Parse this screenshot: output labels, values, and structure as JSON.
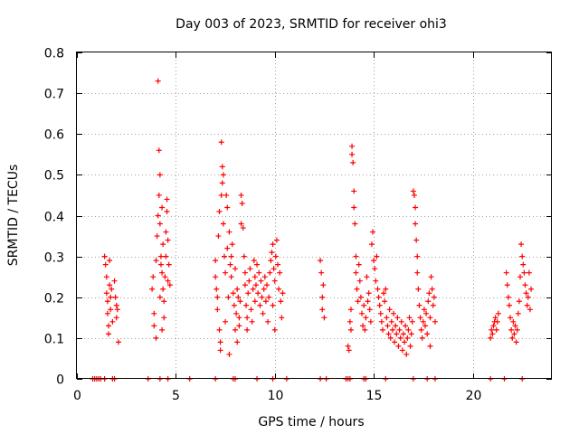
{
  "chart_data": {
    "type": "scatter",
    "title": "Day 003 of 2023, SRMTID for receiver ohi3",
    "xlabel": "GPS time / hours",
    "ylabel": "SRMTID / TECUs",
    "xlim": [
      0,
      24
    ],
    "ylim": [
      0,
      0.8
    ],
    "xticks": [
      0,
      5,
      10,
      15,
      20
    ],
    "xtick_labels": [
      "0",
      "5",
      "10",
      "15",
      "20"
    ],
    "yticks": [
      0,
      0.1,
      0.2,
      0.3,
      0.4,
      0.5,
      0.6,
      0.7,
      0.8
    ],
    "ytick_labels": [
      "0",
      "0.1",
      "0.2",
      "0.3",
      "0.4",
      "0.5",
      "0.6",
      "0.7",
      "0.8"
    ],
    "grid": true,
    "marker": "+",
    "series": [
      {
        "name": "SRMTID",
        "color": "#ff0000",
        "points": [
          [
            0.8,
            0
          ],
          [
            0.9,
            0
          ],
          [
            1.0,
            0
          ],
          [
            1.1,
            0
          ],
          [
            1.2,
            0
          ],
          [
            1.4,
            0
          ],
          [
            1.8,
            0
          ],
          [
            1.9,
            0
          ],
          [
            3.6,
            0
          ],
          [
            4.2,
            0
          ],
          [
            4.6,
            0
          ],
          [
            5.7,
            0
          ],
          [
            7.0,
            0
          ],
          [
            7.9,
            0
          ],
          [
            8.0,
            0
          ],
          [
            9.1,
            0
          ],
          [
            9.9,
            0
          ],
          [
            10.6,
            0
          ],
          [
            12.3,
            0
          ],
          [
            12.6,
            0
          ],
          [
            13.6,
            0
          ],
          [
            13.7,
            0
          ],
          [
            13.8,
            0
          ],
          [
            14.5,
            0
          ],
          [
            14.6,
            0
          ],
          [
            15.6,
            0
          ],
          [
            17.0,
            0
          ],
          [
            17.7,
            0
          ],
          [
            18.1,
            0
          ],
          [
            20.9,
            0
          ],
          [
            21.6,
            0
          ],
          [
            22.5,
            0
          ],
          [
            1.4,
            0.3
          ],
          [
            1.45,
            0.28
          ],
          [
            1.5,
            0.25
          ],
          [
            1.5,
            0.21
          ],
          [
            1.55,
            0.19
          ],
          [
            1.55,
            0.16
          ],
          [
            1.6,
            0.13
          ],
          [
            1.6,
            0.11
          ],
          [
            1.65,
            0.29
          ],
          [
            1.65,
            0.23
          ],
          [
            1.7,
            0.2
          ],
          [
            1.7,
            0.17
          ],
          [
            1.75,
            0.22
          ],
          [
            1.8,
            0.14
          ],
          [
            1.9,
            0.24
          ],
          [
            1.95,
            0.2
          ],
          [
            2.0,
            0.18
          ],
          [
            2.0,
            0.15
          ],
          [
            2.05,
            0.17
          ],
          [
            2.1,
            0.09
          ],
          [
            3.8,
            0.22
          ],
          [
            3.85,
            0.25
          ],
          [
            3.9,
            0.16
          ],
          [
            3.9,
            0.13
          ],
          [
            4.0,
            0.1
          ],
          [
            4.0,
            0.29
          ],
          [
            4.05,
            0.35
          ],
          [
            4.1,
            0.4
          ],
          [
            4.1,
            0.73
          ],
          [
            4.15,
            0.56
          ],
          [
            4.15,
            0.45
          ],
          [
            4.2,
            0.5
          ],
          [
            4.2,
            0.38
          ],
          [
            4.25,
            0.3
          ],
          [
            4.25,
            0.28
          ],
          [
            4.3,
            0.42
          ],
          [
            4.3,
            0.26
          ],
          [
            4.35,
            0.22
          ],
          [
            4.35,
            0.33
          ],
          [
            4.4,
            0.19
          ],
          [
            4.4,
            0.15
          ],
          [
            4.45,
            0.25
          ],
          [
            4.5,
            0.36
          ],
          [
            4.5,
            0.3
          ],
          [
            4.55,
            0.44
          ],
          [
            4.55,
            0.41
          ],
          [
            4.6,
            0.34
          ],
          [
            4.6,
            0.24
          ],
          [
            4.65,
            0.28
          ],
          [
            4.7,
            0.23
          ],
          [
            4.3,
            0.12
          ],
          [
            4.2,
            0.2
          ],
          [
            7.0,
            0.29
          ],
          [
            7.0,
            0.25
          ],
          [
            7.05,
            0.22
          ],
          [
            7.1,
            0.2
          ],
          [
            7.1,
            0.17
          ],
          [
            7.15,
            0.35
          ],
          [
            7.2,
            0.41
          ],
          [
            7.2,
            0.12
          ],
          [
            7.25,
            0.09
          ],
          [
            7.25,
            0.07
          ],
          [
            7.3,
            0.58
          ],
          [
            7.3,
            0.45
          ],
          [
            7.35,
            0.52
          ],
          [
            7.35,
            0.48
          ],
          [
            7.4,
            0.5
          ],
          [
            7.4,
            0.38
          ],
          [
            7.45,
            0.3
          ],
          [
            7.5,
            0.26
          ],
          [
            7.5,
            0.14
          ],
          [
            7.55,
            0.45
          ],
          [
            7.6,
            0.42
          ],
          [
            7.6,
            0.32
          ],
          [
            7.65,
            0.2
          ],
          [
            7.7,
            0.06
          ],
          [
            7.7,
            0.36
          ],
          [
            7.75,
            0.28
          ],
          [
            7.8,
            0.25
          ],
          [
            7.8,
            0.3
          ],
          [
            7.85,
            0.33
          ],
          [
            7.9,
            0.21
          ],
          [
            7.95,
            0.18
          ],
          [
            8.0,
            0.27
          ],
          [
            8.0,
            0.12
          ],
          [
            8.05,
            0.16
          ],
          [
            8.1,
            0.09
          ],
          [
            8.1,
            0.22
          ],
          [
            8.15,
            0.2
          ],
          [
            8.2,
            0.15
          ],
          [
            8.2,
            0.13
          ],
          [
            8.25,
            0.19
          ],
          [
            8.3,
            0.45
          ],
          [
            8.3,
            0.38
          ],
          [
            8.35,
            0.43
          ],
          [
            8.4,
            0.37
          ],
          [
            8.45,
            0.3
          ],
          [
            8.5,
            0.26
          ],
          [
            8.5,
            0.23
          ],
          [
            8.55,
            0.18
          ],
          [
            8.6,
            0.15
          ],
          [
            8.6,
            0.12
          ],
          [
            8.65,
            0.21
          ],
          [
            8.7,
            0.24
          ],
          [
            8.75,
            0.27
          ],
          [
            8.8,
            0.17
          ],
          [
            8.85,
            0.14
          ],
          [
            8.9,
            0.22
          ],
          [
            8.95,
            0.29
          ],
          [
            9.0,
            0.25
          ],
          [
            9.0,
            0.19
          ],
          [
            9.05,
            0.23
          ],
          [
            9.1,
            0.28
          ],
          [
            9.15,
            0.21
          ],
          [
            9.2,
            0.26
          ],
          [
            9.25,
            0.18
          ],
          [
            9.3,
            0.24
          ],
          [
            9.35,
            0.2
          ],
          [
            9.4,
            0.16
          ],
          [
            9.45,
            0.22
          ],
          [
            9.5,
            0.25
          ],
          [
            9.55,
            0.19
          ],
          [
            9.6,
            0.23
          ],
          [
            9.65,
            0.14
          ],
          [
            9.7,
            0.2
          ],
          [
            9.75,
            0.26
          ],
          [
            9.8,
            0.29
          ],
          [
            9.85,
            0.31
          ],
          [
            9.9,
            0.33
          ],
          [
            9.95,
            0.27
          ],
          [
            10.0,
            0.24
          ],
          [
            10.05,
            0.3
          ],
          [
            10.1,
            0.34
          ],
          [
            10.15,
            0.28
          ],
          [
            10.2,
            0.22
          ],
          [
            10.25,
            0.26
          ],
          [
            10.3,
            0.19
          ],
          [
            10.35,
            0.15
          ],
          [
            10.4,
            0.21
          ],
          [
            9.9,
            0.18
          ],
          [
            10.0,
            0.12
          ],
          [
            12.3,
            0.29
          ],
          [
            12.35,
            0.26
          ],
          [
            12.4,
            0.2
          ],
          [
            12.4,
            0.17
          ],
          [
            12.45,
            0.23
          ],
          [
            12.5,
            0.15
          ],
          [
            13.7,
            0.08
          ],
          [
            13.75,
            0.07
          ],
          [
            13.8,
            0.14
          ],
          [
            13.85,
            0.17
          ],
          [
            13.85,
            0.12
          ],
          [
            13.9,
            0.57
          ],
          [
            13.9,
            0.55
          ],
          [
            13.95,
            0.53
          ],
          [
            14.0,
            0.46
          ],
          [
            14.0,
            0.42
          ],
          [
            14.05,
            0.38
          ],
          [
            14.1,
            0.3
          ],
          [
            14.1,
            0.26
          ],
          [
            14.15,
            0.22
          ],
          [
            14.2,
            0.19
          ],
          [
            14.25,
            0.28
          ],
          [
            14.3,
            0.24
          ],
          [
            14.35,
            0.2
          ],
          [
            14.4,
            0.16
          ],
          [
            14.45,
            0.13
          ],
          [
            14.5,
            0.18
          ],
          [
            14.55,
            0.12
          ],
          [
            14.6,
            0.15
          ],
          [
            14.65,
            0.25
          ],
          [
            14.7,
            0.19
          ],
          [
            14.75,
            0.21
          ],
          [
            14.8,
            0.17
          ],
          [
            14.85,
            0.14
          ],
          [
            14.9,
            0.33
          ],
          [
            14.95,
            0.36
          ],
          [
            15.0,
            0.29
          ],
          [
            15.05,
            0.27
          ],
          [
            15.1,
            0.24
          ],
          [
            15.15,
            0.3
          ],
          [
            15.2,
            0.22
          ],
          [
            15.25,
            0.2
          ],
          [
            15.3,
            0.18
          ],
          [
            15.35,
            0.16
          ],
          [
            15.4,
            0.14
          ],
          [
            15.45,
            0.12
          ],
          [
            15.5,
            0.21
          ],
          [
            15.55,
            0.19
          ],
          [
            15.6,
            0.22
          ],
          [
            15.65,
            0.15
          ],
          [
            15.7,
            0.13
          ],
          [
            15.75,
            0.11
          ],
          [
            15.8,
            0.17
          ],
          [
            15.85,
            0.1
          ],
          [
            15.9,
            0.14
          ],
          [
            15.95,
            0.12
          ],
          [
            16.0,
            0.16
          ],
          [
            16.05,
            0.09
          ],
          [
            16.1,
            0.13
          ],
          [
            16.15,
            0.11
          ],
          [
            16.2,
            0.15
          ],
          [
            16.25,
            0.08
          ],
          [
            16.3,
            0.12
          ],
          [
            16.35,
            0.1
          ],
          [
            16.4,
            0.14
          ],
          [
            16.45,
            0.07
          ],
          [
            16.5,
            0.11
          ],
          [
            16.55,
            0.09
          ],
          [
            16.6,
            0.13
          ],
          [
            16.65,
            0.06
          ],
          [
            16.7,
            0.1
          ],
          [
            16.75,
            0.12
          ],
          [
            16.8,
            0.15
          ],
          [
            16.85,
            0.08
          ],
          [
            16.9,
            0.11
          ],
          [
            16.95,
            0.14
          ],
          [
            17.0,
            0.46
          ],
          [
            17.05,
            0.45
          ],
          [
            17.1,
            0.42
          ],
          [
            17.1,
            0.38
          ],
          [
            17.15,
            0.34
          ],
          [
            17.2,
            0.3
          ],
          [
            17.2,
            0.26
          ],
          [
            17.25,
            0.22
          ],
          [
            17.3,
            0.18
          ],
          [
            17.35,
            0.15
          ],
          [
            17.4,
            0.12
          ],
          [
            17.45,
            0.1
          ],
          [
            17.5,
            0.14
          ],
          [
            17.55,
            0.17
          ],
          [
            17.6,
            0.13
          ],
          [
            17.65,
            0.16
          ],
          [
            17.7,
            0.11
          ],
          [
            17.75,
            0.19
          ],
          [
            17.8,
            0.21
          ],
          [
            17.85,
            0.15
          ],
          [
            17.9,
            0.25
          ],
          [
            17.95,
            0.22
          ],
          [
            18.0,
            0.18
          ],
          [
            18.05,
            0.2
          ],
          [
            18.1,
            0.14
          ],
          [
            17.85,
            0.08
          ],
          [
            20.9,
            0.1
          ],
          [
            20.95,
            0.12
          ],
          [
            21.0,
            0.11
          ],
          [
            21.05,
            0.13
          ],
          [
            21.1,
            0.14
          ],
          [
            21.15,
            0.15
          ],
          [
            21.2,
            0.12
          ],
          [
            21.25,
            0.14
          ],
          [
            21.3,
            0.16
          ],
          [
            21.7,
            0.26
          ],
          [
            21.75,
            0.23
          ],
          [
            21.8,
            0.2
          ],
          [
            21.85,
            0.18
          ],
          [
            21.9,
            0.15
          ],
          [
            21.95,
            0.12
          ],
          [
            22.0,
            0.1
          ],
          [
            22.05,
            0.14
          ],
          [
            22.1,
            0.11
          ],
          [
            22.15,
            0.13
          ],
          [
            22.2,
            0.09
          ],
          [
            22.25,
            0.12
          ],
          [
            22.3,
            0.16
          ],
          [
            22.35,
            0.19
          ],
          [
            22.4,
            0.25
          ],
          [
            22.45,
            0.33
          ],
          [
            22.5,
            0.3
          ],
          [
            22.55,
            0.28
          ],
          [
            22.6,
            0.26
          ],
          [
            22.65,
            0.23
          ],
          [
            22.7,
            0.21
          ],
          [
            22.75,
            0.18
          ],
          [
            22.8,
            0.2
          ],
          [
            22.85,
            0.26
          ],
          [
            22.9,
            0.17
          ],
          [
            22.95,
            0.22
          ]
        ]
      }
    ]
  }
}
